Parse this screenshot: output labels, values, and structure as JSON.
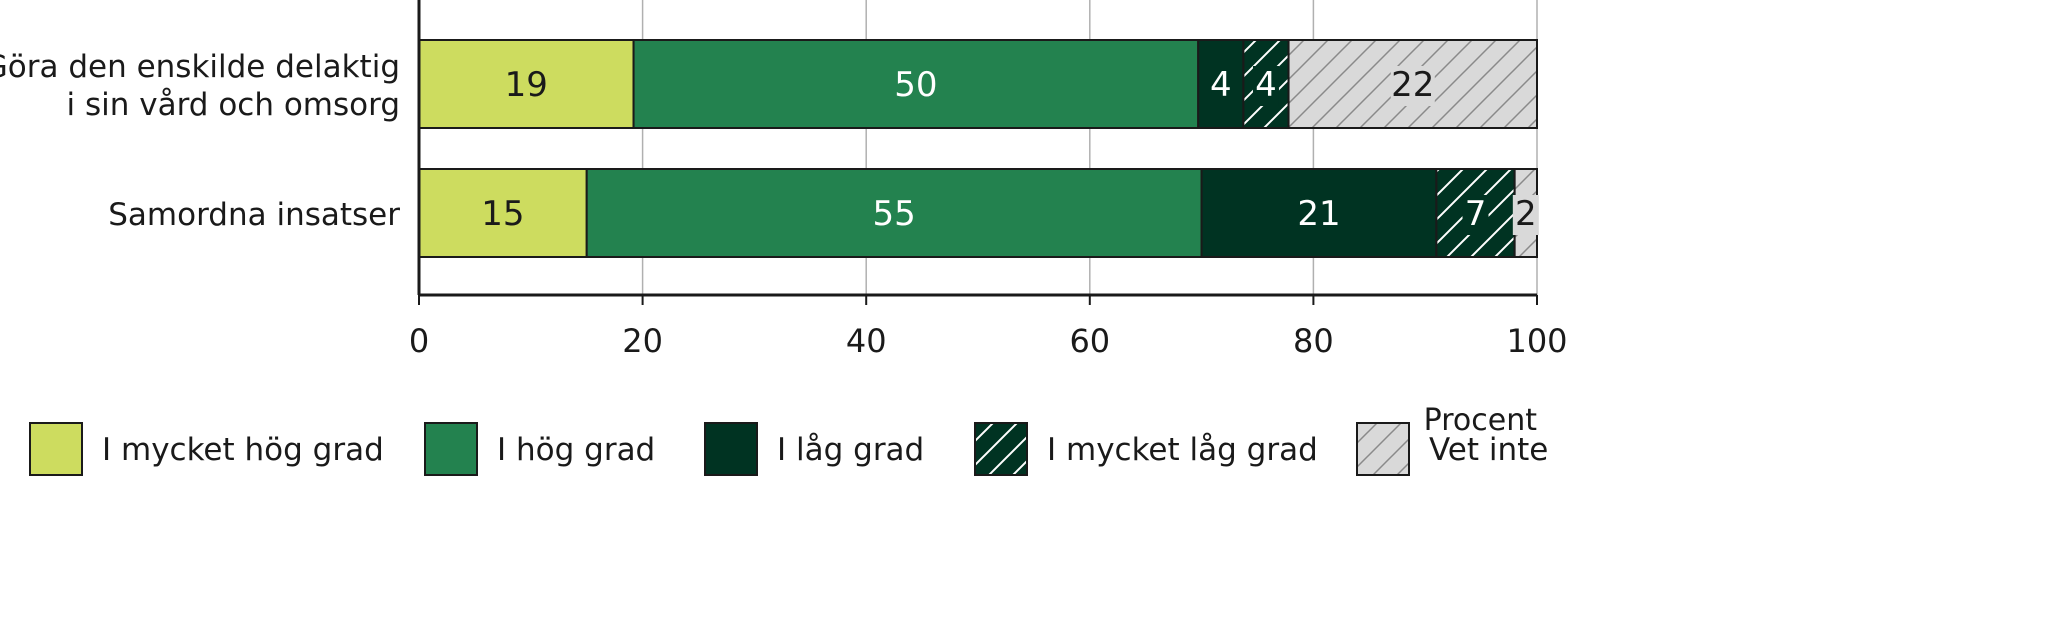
{
  "chart_data": {
    "type": "bar",
    "orientation": "horizontal",
    "stacked": true,
    "categories": [
      "Göra den enskilde delaktig\ni sin vård och omsorg",
      "Samordna insatser"
    ],
    "series": [
      {
        "name": "I mycket hög grad",
        "values": [
          19,
          15
        ],
        "color": "#cddc5f",
        "pattern": "solid",
        "label_color": "#1a1a1a"
      },
      {
        "name": "I hög grad",
        "values": [
          50,
          55
        ],
        "color": "#23824f",
        "pattern": "solid",
        "label_color": "#ffffff"
      },
      {
        "name": "I låg grad",
        "values": [
          4,
          21
        ],
        "color": "#003322",
        "pattern": "solid",
        "label_color": "#ffffff"
      },
      {
        "name": "I mycket låg grad",
        "values": [
          4,
          7
        ],
        "color": "#003322",
        "pattern": "hatch-white",
        "label_color": "#ffffff"
      },
      {
        "name": "Vet inte",
        "values": [
          22,
          2
        ],
        "color": "#d9d9d9",
        "pattern": "hatch-gray",
        "label_color": "#1a1a1a"
      }
    ],
    "xlabel": "Procent",
    "xlim": [
      0,
      100
    ],
    "xticks": [
      0,
      20,
      40,
      60,
      80,
      100
    ],
    "grid": "vertical",
    "legend": "bottom"
  }
}
